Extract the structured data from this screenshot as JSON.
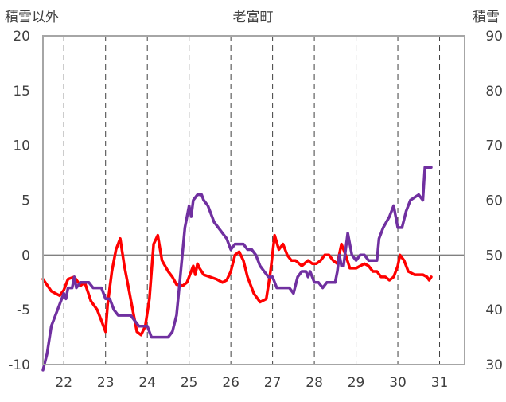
{
  "chart_data": {
    "type": "line",
    "title": "老富町",
    "left_axis_label": "積雪以外",
    "right_axis_label": "積雪",
    "x_ticks": [
      "22",
      "23",
      "24",
      "25",
      "26",
      "27",
      "28",
      "29",
      "30",
      "31"
    ],
    "y_left_ticks": [
      "20",
      "15",
      "10",
      "5",
      "0",
      "-5",
      "-10"
    ],
    "y_right_ticks": [
      "90",
      "80",
      "70",
      "60",
      "50",
      "40",
      "30"
    ],
    "x_range": [
      21.5,
      31.6
    ],
    "y_left_range": [
      -10,
      20
    ],
    "y_right_range": [
      30,
      90
    ],
    "grid": true,
    "series": [
      {
        "axis": "left",
        "color": "#ff0000",
        "points": [
          [
            21.5,
            -2.2
          ],
          [
            21.7,
            -3.3
          ],
          [
            21.9,
            -3.7
          ],
          [
            22.0,
            -3.2
          ],
          [
            22.1,
            -2.2
          ],
          [
            22.25,
            -2.0
          ],
          [
            22.4,
            -2.8
          ],
          [
            22.5,
            -2.5
          ],
          [
            22.65,
            -4.2
          ],
          [
            22.8,
            -5.0
          ],
          [
            22.9,
            -6.0
          ],
          [
            23.0,
            -7.0
          ],
          [
            23.05,
            -4.5
          ],
          [
            23.15,
            -1.5
          ],
          [
            23.25,
            0.5
          ],
          [
            23.35,
            1.5
          ],
          [
            23.45,
            -1.0
          ],
          [
            23.55,
            -3.0
          ],
          [
            23.65,
            -5.0
          ],
          [
            23.75,
            -7.0
          ],
          [
            23.85,
            -7.3
          ],
          [
            23.95,
            -6.5
          ],
          [
            24.05,
            -4.0
          ],
          [
            24.15,
            1.0
          ],
          [
            24.25,
            1.8
          ],
          [
            24.35,
            -0.5
          ],
          [
            24.5,
            -1.5
          ],
          [
            24.6,
            -2.0
          ],
          [
            24.7,
            -2.7
          ],
          [
            24.85,
            -2.8
          ],
          [
            24.95,
            -2.5
          ],
          [
            25.05,
            -1.5
          ],
          [
            25.1,
            -1.0
          ],
          [
            25.15,
            -1.8
          ],
          [
            25.2,
            -0.8
          ],
          [
            25.25,
            -1.2
          ],
          [
            25.35,
            -1.8
          ],
          [
            25.5,
            -2.0
          ],
          [
            25.65,
            -2.2
          ],
          [
            25.8,
            -2.5
          ],
          [
            25.9,
            -2.3
          ],
          [
            26.0,
            -1.5
          ],
          [
            26.1,
            0.0
          ],
          [
            26.2,
            0.3
          ],
          [
            26.3,
            -0.5
          ],
          [
            26.4,
            -2.0
          ],
          [
            26.55,
            -3.5
          ],
          [
            26.7,
            -4.3
          ],
          [
            26.85,
            -4.0
          ],
          [
            26.95,
            -1.5
          ],
          [
            27.05,
            1.8
          ],
          [
            27.15,
            0.5
          ],
          [
            27.25,
            1.0
          ],
          [
            27.35,
            0.0
          ],
          [
            27.45,
            -0.5
          ],
          [
            27.55,
            -0.5
          ],
          [
            27.7,
            -1.0
          ],
          [
            27.85,
            -0.5
          ],
          [
            27.95,
            -0.8
          ],
          [
            28.05,
            -0.8
          ],
          [
            28.15,
            -0.5
          ],
          [
            28.25,
            0.0
          ],
          [
            28.35,
            0.0
          ],
          [
            28.45,
            -0.5
          ],
          [
            28.55,
            -0.8
          ],
          [
            28.65,
            1.0
          ],
          [
            28.75,
            0.0
          ],
          [
            28.85,
            -1.2
          ],
          [
            29.0,
            -1.2
          ],
          [
            29.1,
            -1.0
          ],
          [
            29.2,
            -0.8
          ],
          [
            29.3,
            -1.0
          ],
          [
            29.4,
            -1.5
          ],
          [
            29.5,
            -1.5
          ],
          [
            29.6,
            -2.0
          ],
          [
            29.7,
            -2.0
          ],
          [
            29.8,
            -2.3
          ],
          [
            29.9,
            -2.0
          ],
          [
            30.0,
            -1.0
          ],
          [
            30.05,
            0.0
          ],
          [
            30.15,
            -0.5
          ],
          [
            30.25,
            -1.5
          ],
          [
            30.4,
            -1.8
          ],
          [
            30.5,
            -1.8
          ],
          [
            30.6,
            -1.8
          ],
          [
            30.7,
            -2.0
          ],
          [
            30.75,
            -2.3
          ],
          [
            30.8,
            -2.0
          ]
        ]
      },
      {
        "axis": "right",
        "color": "#7030a0",
        "points": [
          [
            21.5,
            29
          ],
          [
            21.6,
            32
          ],
          [
            21.7,
            37
          ],
          [
            21.8,
            39
          ],
          [
            21.9,
            41
          ],
          [
            22.0,
            43
          ],
          [
            22.05,
            42
          ],
          [
            22.1,
            44
          ],
          [
            22.2,
            44
          ],
          [
            22.25,
            46
          ],
          [
            22.3,
            44
          ],
          [
            22.4,
            45
          ],
          [
            22.5,
            45
          ],
          [
            22.6,
            45
          ],
          [
            22.7,
            44
          ],
          [
            22.8,
            44
          ],
          [
            22.9,
            44
          ],
          [
            23.0,
            42
          ],
          [
            23.1,
            42
          ],
          [
            23.2,
            40
          ],
          [
            23.3,
            39
          ],
          [
            23.4,
            39
          ],
          [
            23.6,
            39
          ],
          [
            23.7,
            38
          ],
          [
            23.8,
            37
          ],
          [
            23.9,
            37
          ],
          [
            24.0,
            37
          ],
          [
            24.05,
            36
          ],
          [
            24.1,
            35
          ],
          [
            24.5,
            35
          ],
          [
            24.6,
            36
          ],
          [
            24.7,
            39
          ],
          [
            24.8,
            47
          ],
          [
            24.9,
            55
          ],
          [
            25.0,
            59
          ],
          [
            25.05,
            57
          ],
          [
            25.1,
            60
          ],
          [
            25.2,
            61
          ],
          [
            25.3,
            61
          ],
          [
            25.35,
            60
          ],
          [
            25.45,
            59
          ],
          [
            25.5,
            58
          ],
          [
            25.6,
            56
          ],
          [
            25.7,
            55
          ],
          [
            25.8,
            54
          ],
          [
            25.9,
            53
          ],
          [
            26.0,
            51
          ],
          [
            26.1,
            52
          ],
          [
            26.2,
            52
          ],
          [
            26.3,
            52
          ],
          [
            26.4,
            51
          ],
          [
            26.5,
            51
          ],
          [
            26.6,
            50
          ],
          [
            26.7,
            48
          ],
          [
            26.8,
            47
          ],
          [
            26.9,
            46
          ],
          [
            27.0,
            46
          ],
          [
            27.1,
            44
          ],
          [
            27.2,
            44
          ],
          [
            27.3,
            44
          ],
          [
            27.4,
            44
          ],
          [
            27.5,
            43
          ],
          [
            27.6,
            46
          ],
          [
            27.7,
            47
          ],
          [
            27.8,
            47
          ],
          [
            27.85,
            46
          ],
          [
            27.9,
            47
          ],
          [
            28.0,
            45
          ],
          [
            28.1,
            45
          ],
          [
            28.2,
            44
          ],
          [
            28.3,
            45
          ],
          [
            28.5,
            45
          ],
          [
            28.55,
            47
          ],
          [
            28.6,
            50
          ],
          [
            28.65,
            48
          ],
          [
            28.7,
            48
          ],
          [
            28.8,
            54
          ],
          [
            28.9,
            50
          ],
          [
            29.0,
            49
          ],
          [
            29.1,
            50
          ],
          [
            29.2,
            50
          ],
          [
            29.3,
            49
          ],
          [
            29.4,
            49
          ],
          [
            29.5,
            49
          ],
          [
            29.55,
            53
          ],
          [
            29.65,
            55
          ],
          [
            29.8,
            57
          ],
          [
            29.9,
            59
          ],
          [
            30.0,
            55
          ],
          [
            30.1,
            55
          ],
          [
            30.2,
            58
          ],
          [
            30.3,
            60
          ],
          [
            30.5,
            61
          ],
          [
            30.6,
            60
          ],
          [
            30.65,
            66
          ],
          [
            30.7,
            66
          ],
          [
            30.8,
            66
          ]
        ]
      }
    ]
  }
}
